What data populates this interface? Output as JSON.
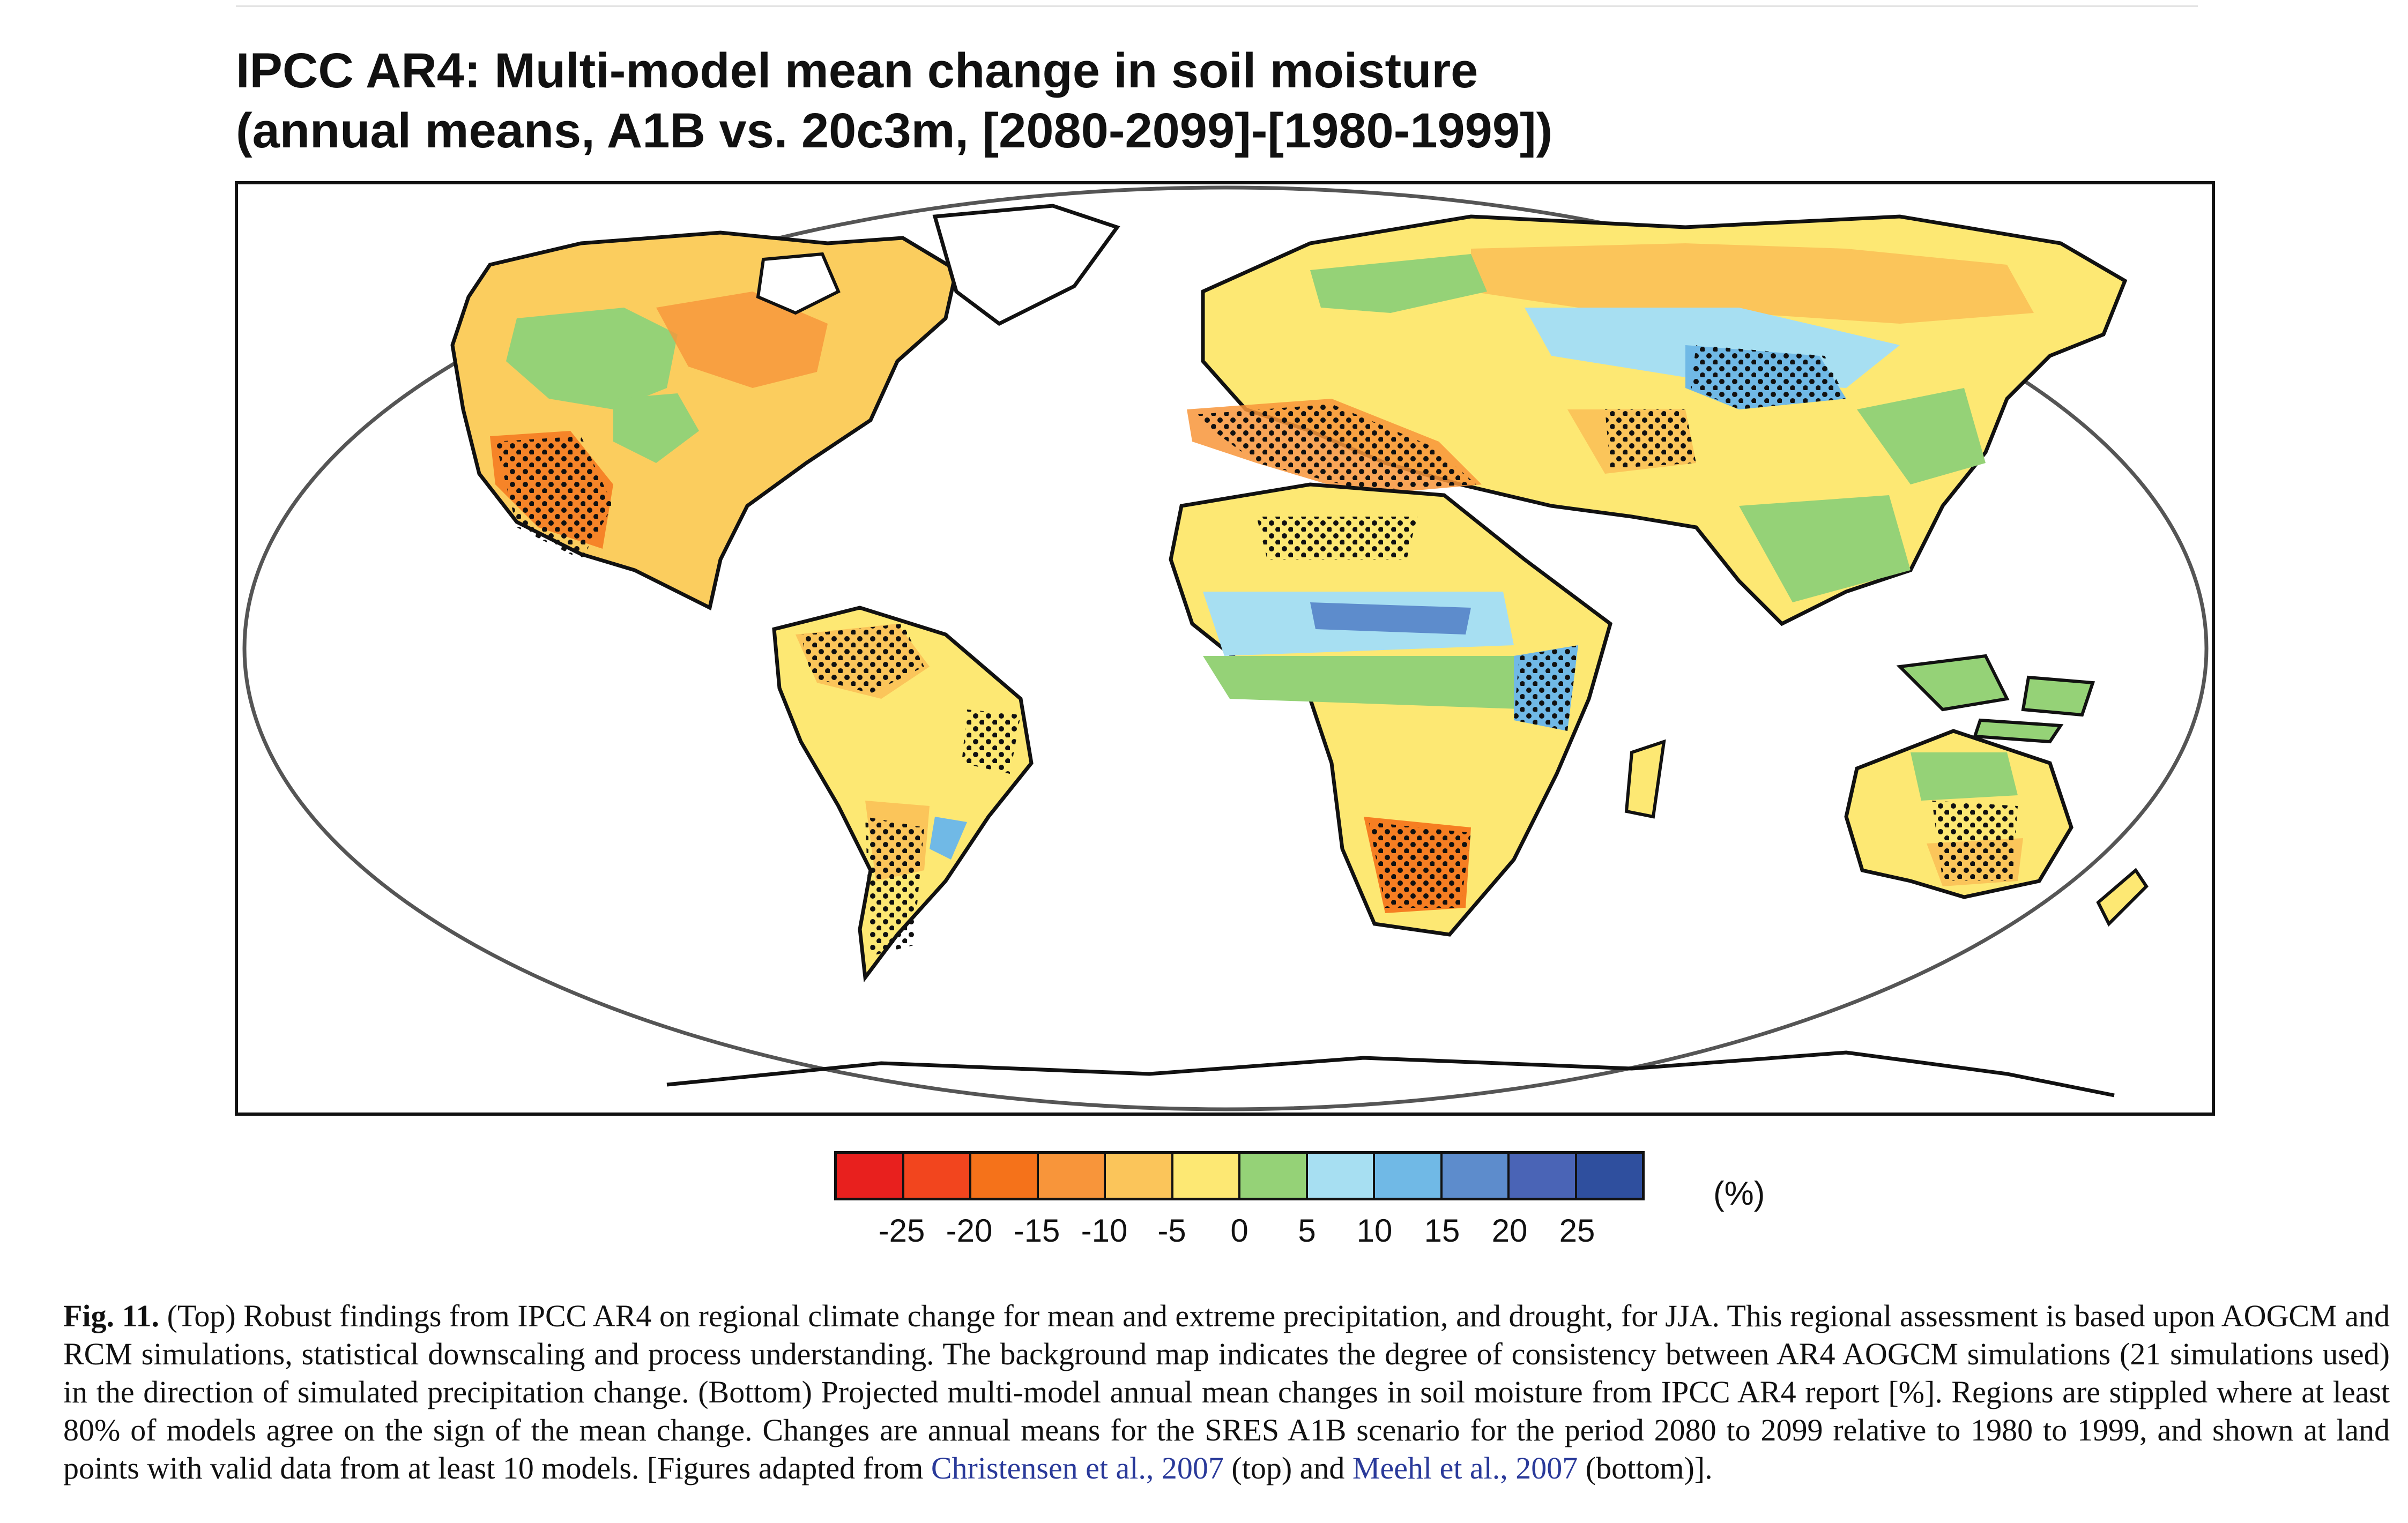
{
  "title": {
    "line1": "IPCC AR4: Multi-model mean change in soil moisture",
    "line2": "(annual means, A1B vs. 20c3m, [2080-2099]-[1980-1999])"
  },
  "colorbar": {
    "colors": [
      "#e8201e",
      "#f2451e",
      "#f5721a",
      "#f8953a",
      "#fbc55a",
      "#fde873",
      "#95d277",
      "#a7dff2",
      "#70b9e6",
      "#5d8ccc",
      "#4a64b6",
      "#2f4f9e"
    ],
    "ticks": [
      "-25",
      "-20",
      "-15",
      "-10",
      "-5",
      "0",
      "5",
      "10",
      "15",
      "20",
      "25"
    ],
    "unit": "(%)"
  },
  "caption": {
    "label": "Fig. 11.",
    "text_before": " (Top) Robust findings from IPCC AR4 on regional climate change for mean and extreme precipitation, and drought, for JJA. This regional assessment is based upon AOGCM and RCM simulations, statistical downscaling and process understanding. The background map indicates the degree of consistency between AR4 AOGCM simulations (21 simulations used) in the direction of simulated precipitation change. (Bottom) Projected multi-model annual mean changes in soil moisture from IPCC AR4 report [%]. Regions are stippled where at least 80% of models agree on the sign of the mean change. Changes are annual means for the SRES A1B scenario for the period 2080 to 2099 relative to 1980 to 1999, and shown at land points with valid data from at least 10 models. [Figures adapted from ",
    "ref1": "Christensen et al., 2007",
    "text_mid": " (top) and ",
    "ref2": "Meehl et al., 2007",
    "text_after": " (bottom)]."
  }
}
